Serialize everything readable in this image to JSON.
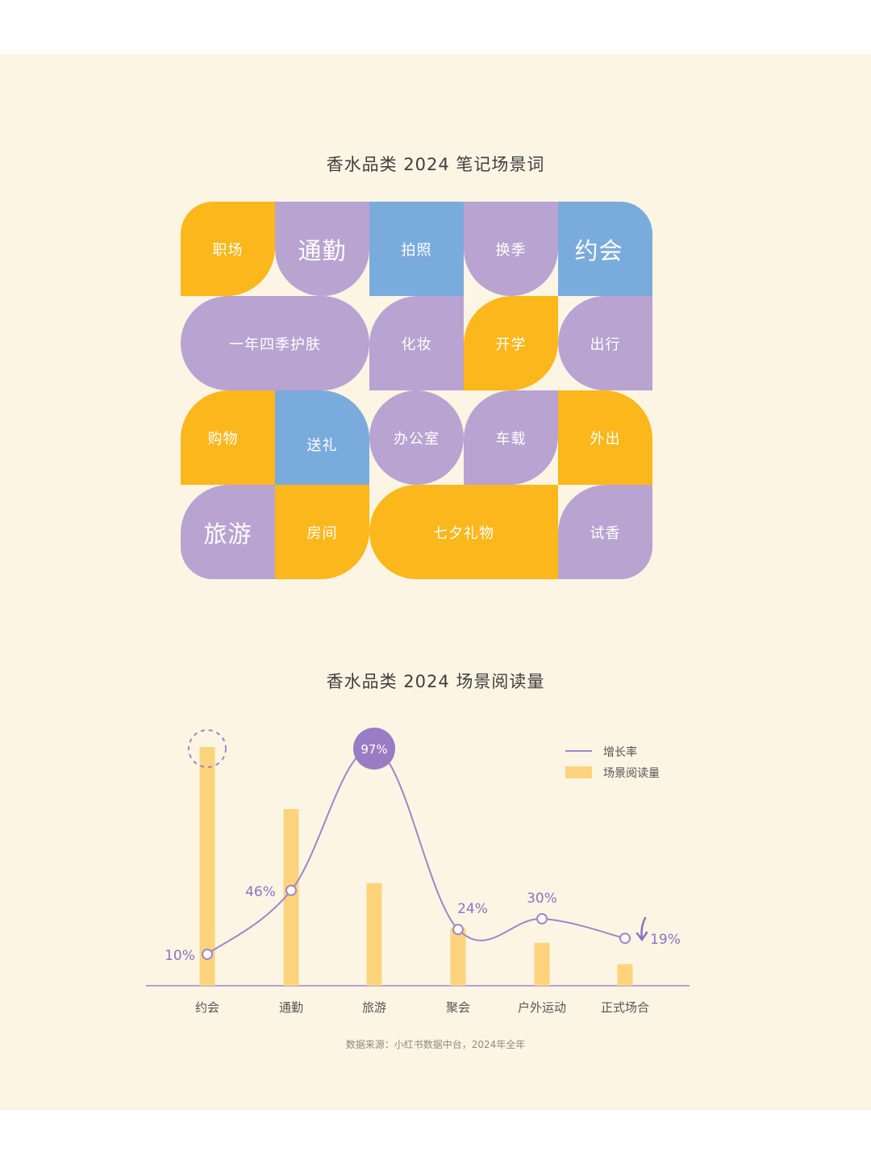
{
  "colors": {
    "yellow": "#fbb71c",
    "purple": "#b8a3d1",
    "blue": "#7aabdd",
    "bar": "#fdd47d",
    "line": "#9f86c8",
    "dot": "#9a7cc4",
    "label": "#8d73c0",
    "axis": "#b4a2d2",
    "text": "#555555"
  },
  "grid": {
    "title": "香水品类 2024 笔记场景词",
    "tiles": [
      {
        "label": "职场",
        "color": "yellow",
        "icon": "leaf-tile"
      },
      {
        "label": "通勤",
        "color": "purple",
        "icon": "arch-tile"
      },
      {
        "label": "拍照",
        "color": "blue",
        "icon": "square-tile"
      },
      {
        "label": "换季",
        "color": "purple",
        "icon": "arch-tile"
      },
      {
        "label": "约会",
        "color": "blue",
        "icon": "round-top-right-tile"
      },
      {
        "label": "一年四季护肤",
        "color": "purple",
        "icon": "pill-tile"
      },
      {
        "label": "化妆",
        "color": "purple",
        "icon": "round-top-left-tile"
      },
      {
        "label": "开学",
        "color": "yellow",
        "icon": "leaf-tile"
      },
      {
        "label": "出行",
        "color": "purple",
        "icon": "round-left-tile"
      },
      {
        "label": "购物",
        "color": "yellow",
        "icon": "round-top-left-tile"
      },
      {
        "label": "送礼",
        "color": "blue",
        "icon": "round-top-right-tile"
      },
      {
        "label": "办公室",
        "color": "purple",
        "icon": "circle-tile"
      },
      {
        "label": "车载",
        "color": "purple",
        "icon": "leaf-tile"
      },
      {
        "label": "外出",
        "color": "yellow",
        "icon": "round-top-right-tile"
      },
      {
        "label": "旅游",
        "color": "purple",
        "icon": "round-top-left-tile"
      },
      {
        "label": "房间",
        "color": "yellow",
        "icon": "round-bottom-right-tile"
      },
      {
        "label": "七夕礼物",
        "color": "yellow",
        "icon": "round-left-tile"
      },
      {
        "label": "试香",
        "color": "purple",
        "icon": "round-top-left-tile"
      }
    ]
  },
  "chart_data": {
    "type": "bar",
    "title": "香水品类 2024 场景阅读量",
    "categories": [
      "约会",
      "通勤",
      "旅游",
      "聚会",
      "户外运动",
      "正式场合"
    ],
    "series": [
      {
        "name": "场景阅读量",
        "kind": "bar",
        "values": [
          100,
          74,
          43,
          24,
          18,
          9
        ]
      },
      {
        "name": "增长率",
        "kind": "line",
        "values": [
          10,
          46,
          97,
          24,
          30,
          19
        ],
        "labels": [
          "10%",
          "46%",
          "97%",
          "24%",
          "30%",
          "19%"
        ]
      }
    ],
    "bar_value_scale": "relative, no axis printed",
    "ylim_growth": [
      0,
      100
    ],
    "highlight": {
      "max_growth_category": "旅游",
      "max_reads_category": "约会",
      "decline_category": "正式场合"
    },
    "legend_placement": "top-right",
    "grid": false
  },
  "source": "数据来源：小红书数据中台，2024年全年"
}
